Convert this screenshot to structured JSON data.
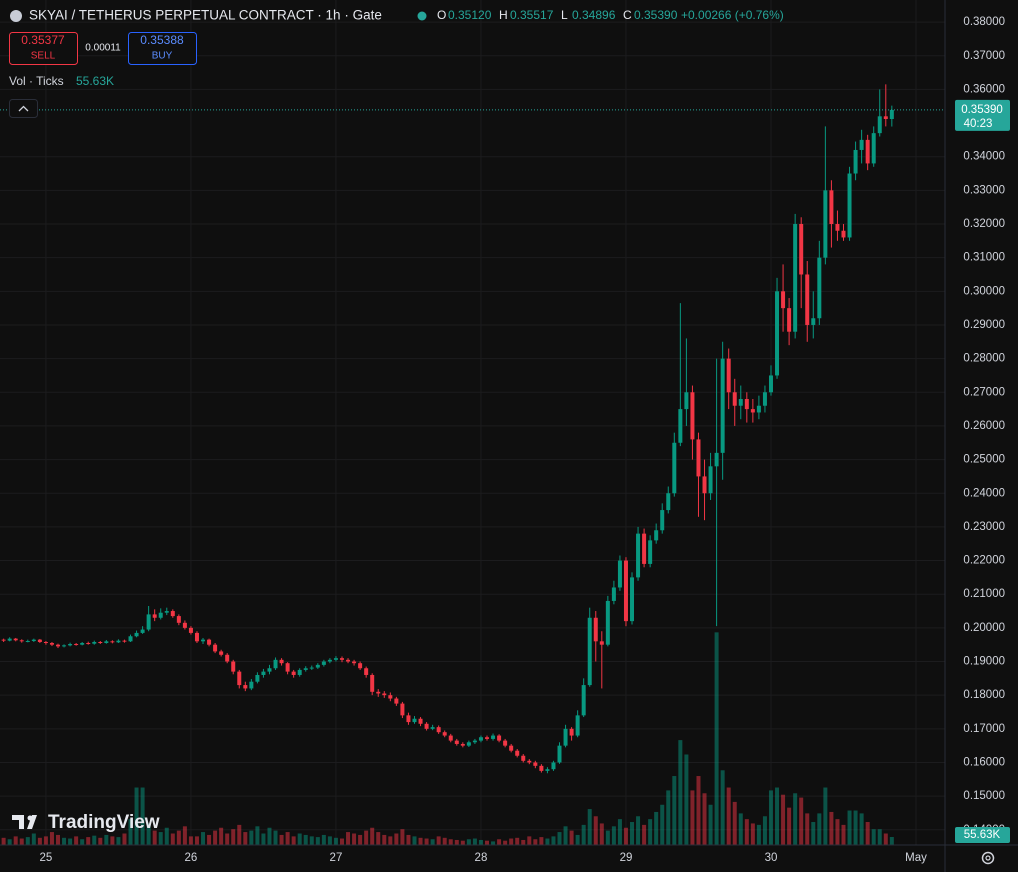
{
  "chart_data": {
    "type": "candlestick",
    "title": "SKYAI / TETHERUS PERPETUAL CONTRACT · 1h · Gate",
    "ohlc_header": [
      {
        "key": "O",
        "value": "0.35120"
      },
      {
        "key": "H",
        "value": "0.35517"
      },
      {
        "key": "L",
        "value": "0.34896"
      },
      {
        "key": "C",
        "value": "0.35390"
      }
    ],
    "change": "+0.00266 (+0.76%)",
    "sell": {
      "price": "0.35377",
      "label": "SELL"
    },
    "spread": "0.00011",
    "buy": {
      "price": "0.35388",
      "label": "BUY"
    },
    "brand": "TradingView",
    "up_color": "#089981",
    "down_color": "#f23645",
    "grid": true,
    "xlim": [
      0.4,
      156.8
    ],
    "xticks": [
      {
        "value": 8,
        "label": "25"
      },
      {
        "value": 32,
        "label": "26"
      },
      {
        "value": 56,
        "label": "27"
      },
      {
        "value": 80,
        "label": "28"
      },
      {
        "value": 104,
        "label": "29"
      },
      {
        "value": 128,
        "label": "30"
      },
      {
        "value": 152,
        "label": "May"
      }
    ],
    "ylim": [
      0.13548,
      0.38656
    ],
    "yticks": [
      {
        "value": 0.38,
        "label": "0.38000"
      },
      {
        "value": 0.37,
        "label": "0.37000"
      },
      {
        "value": 0.36,
        "label": "0.36000"
      },
      {
        "value": 0.34,
        "label": "0.34000"
      },
      {
        "value": 0.33,
        "label": "0.33000"
      },
      {
        "value": 0.32,
        "label": "0.32000"
      },
      {
        "value": 0.31,
        "label": "0.31000"
      },
      {
        "value": 0.3,
        "label": "0.30000"
      },
      {
        "value": 0.29,
        "label": "0.29000"
      },
      {
        "value": 0.28,
        "label": "0.28000"
      },
      {
        "value": 0.27,
        "label": "0.27000"
      },
      {
        "value": 0.26,
        "label": "0.26000"
      },
      {
        "value": 0.25,
        "label": "0.25000"
      },
      {
        "value": 0.24,
        "label": "0.24000"
      },
      {
        "value": 0.23,
        "label": "0.23000"
      },
      {
        "value": 0.22,
        "label": "0.22000"
      },
      {
        "value": 0.21,
        "label": "0.21000"
      },
      {
        "value": 0.2,
        "label": "0.20000"
      },
      {
        "value": 0.19,
        "label": "0.19000"
      },
      {
        "value": 0.18,
        "label": "0.18000"
      },
      {
        "value": 0.17,
        "label": "0.17000"
      },
      {
        "value": 0.16,
        "label": "0.16000"
      },
      {
        "value": 0.15,
        "label": "0.15000"
      },
      {
        "value": 0.14,
        "label": "0.14000"
      }
    ],
    "last_price": {
      "value": 0.3539,
      "label": "0.35390"
    },
    "countdown": "40:23",
    "open": [
      0.196,
      0.1965,
      0.1962,
      0.1968,
      0.1963,
      0.196,
      0.1961,
      0.1965,
      0.1958,
      0.1955,
      0.195,
      0.1945,
      0.1948,
      0.1952,
      0.195,
      0.1955,
      0.1953,
      0.1958,
      0.1955,
      0.196,
      0.1957,
      0.1962,
      0.196,
      0.1975,
      0.1985,
      0.1995,
      0.204,
      0.203,
      0.2045,
      0.205,
      0.2035,
      0.2015,
      0.2,
      0.1985,
      0.196,
      0.1965,
      0.195,
      0.193,
      0.192,
      0.19,
      0.187,
      0.183,
      0.182,
      0.184,
      0.186,
      0.187,
      0.188,
      0.1905,
      0.1895,
      0.187,
      0.186,
      0.1875,
      0.188,
      0.1882,
      0.189,
      0.19,
      0.1905,
      0.191,
      0.1905,
      0.19,
      0.1895,
      0.188,
      0.186,
      0.181,
      0.1805,
      0.18,
      0.179,
      0.1775,
      0.174,
      0.172,
      0.173,
      0.1715,
      0.17,
      0.1705,
      0.169,
      0.168,
      0.1665,
      0.1655,
      0.165,
      0.166,
      0.1665,
      0.1675,
      0.167,
      0.168,
      0.1665,
      0.165,
      0.1635,
      0.162,
      0.1605,
      0.16,
      0.159,
      0.1575,
      0.158,
      0.16,
      0.165,
      0.17,
      0.168,
      0.174,
      0.183,
      0.203,
      0.196,
      0.195,
      0.208,
      0.212,
      0.22,
      0.202,
      0.215,
      0.228,
      0.219,
      0.226,
      0.229,
      0.235,
      0.24,
      0.255,
      0.265,
      0.27,
      0.256,
      0.245,
      0.24,
      0.248,
      0.252,
      0.28,
      0.27,
      0.266,
      0.268,
      0.265,
      0.264,
      0.266,
      0.27,
      0.275,
      0.3,
      0.295,
      0.288,
      0.32,
      0.305,
      0.29,
      0.292,
      0.31,
      0.33,
      0.32,
      0.318,
      0.316,
      0.335,
      0.342,
      0.345,
      0.338,
      0.347,
      0.352,
      0.3512
    ],
    "high": [
      0.197,
      0.1968,
      0.1972,
      0.197,
      0.1966,
      0.1965,
      0.1968,
      0.1967,
      0.1961,
      0.1958,
      0.1953,
      0.1951,
      0.1956,
      0.1955,
      0.1958,
      0.1959,
      0.1962,
      0.1961,
      0.1964,
      0.1963,
      0.1966,
      0.1965,
      0.198,
      0.1992,
      0.2005,
      0.2065,
      0.2055,
      0.2058,
      0.206,
      0.2055,
      0.204,
      0.2022,
      0.2005,
      0.199,
      0.197,
      0.1968,
      0.1955,
      0.1935,
      0.1925,
      0.1905,
      0.1875,
      0.184,
      0.1848,
      0.1868,
      0.1878,
      0.189,
      0.1912,
      0.191,
      0.1898,
      0.1875,
      0.188,
      0.1886,
      0.1888,
      0.1895,
      0.1905,
      0.191,
      0.1916,
      0.1915,
      0.191,
      0.1905,
      0.19,
      0.1885,
      0.1865,
      0.1818,
      0.1812,
      0.1808,
      0.1795,
      0.178,
      0.1748,
      0.1738,
      0.1735,
      0.172,
      0.1712,
      0.171,
      0.1695,
      0.1685,
      0.167,
      0.166,
      0.1665,
      0.167,
      0.168,
      0.168,
      0.1686,
      0.1684,
      0.167,
      0.1655,
      0.164,
      0.1625,
      0.161,
      0.1605,
      0.1595,
      0.1586,
      0.1605,
      0.166,
      0.1712,
      0.1705,
      0.1755,
      0.185,
      0.206,
      0.205,
      0.199,
      0.2095,
      0.214,
      0.2215,
      0.221,
      0.2165,
      0.23,
      0.2295,
      0.2275,
      0.231,
      0.237,
      0.242,
      0.258,
      0.2965,
      0.286,
      0.272,
      0.258,
      0.25,
      0.252,
      0.28,
      0.285,
      0.283,
      0.274,
      0.272,
      0.27,
      0.268,
      0.269,
      0.272,
      0.278,
      0.304,
      0.308,
      0.298,
      0.323,
      0.322,
      0.309,
      0.3,
      0.315,
      0.349,
      0.333,
      0.324,
      0.32,
      0.337,
      0.3445,
      0.348,
      0.3465,
      0.349,
      0.36,
      0.3615,
      0.35517
    ],
    "low": [
      0.1955,
      0.1958,
      0.196,
      0.196,
      0.1956,
      0.1957,
      0.1958,
      0.1955,
      0.195,
      0.1946,
      0.194,
      0.1942,
      0.1945,
      0.1947,
      0.1948,
      0.195,
      0.195,
      0.1952,
      0.1953,
      0.1954,
      0.1955,
      0.1956,
      0.1958,
      0.1972,
      0.1982,
      0.199,
      0.202,
      0.2025,
      0.2038,
      0.203,
      0.2008,
      0.1995,
      0.198,
      0.1955,
      0.1952,
      0.1945,
      0.1925,
      0.1915,
      0.1895,
      0.1862,
      0.182,
      0.1812,
      0.1815,
      0.1835,
      0.1852,
      0.1862,
      0.1875,
      0.1888,
      0.1862,
      0.1852,
      0.1855,
      0.187,
      0.1875,
      0.1878,
      0.1885,
      0.1895,
      0.19,
      0.1898,
      0.1895,
      0.1888,
      0.1875,
      0.1852,
      0.18,
      0.1795,
      0.1792,
      0.1782,
      0.1768,
      0.1732,
      0.1712,
      0.1715,
      0.1708,
      0.1695,
      0.1696,
      0.1685,
      0.1675,
      0.166,
      0.165,
      0.1645,
      0.1646,
      0.1655,
      0.166,
      0.1665,
      0.1665,
      0.166,
      0.1645,
      0.163,
      0.1615,
      0.16,
      0.1595,
      0.1583,
      0.157,
      0.1568,
      0.1575,
      0.1596,
      0.1645,
      0.1665,
      0.1675,
      0.1735,
      0.1825,
      0.19,
      0.182,
      0.1945,
      0.207,
      0.211,
      0.2005,
      0.201,
      0.214,
      0.218,
      0.218,
      0.225,
      0.228,
      0.234,
      0.239,
      0.254,
      0.26,
      0.25,
      0.233,
      0.232,
      0.238,
      0.2005,
      0.244,
      0.265,
      0.26,
      0.262,
      0.261,
      0.261,
      0.262,
      0.264,
      0.269,
      0.274,
      0.288,
      0.284,
      0.286,
      0.295,
      0.285,
      0.286,
      0.29,
      0.308,
      0.313,
      0.315,
      0.315,
      0.315,
      0.333,
      0.338,
      0.336,
      0.337,
      0.346,
      0.349,
      0.34896
    ],
    "close": [
      0.1965,
      0.1962,
      0.1968,
      0.1963,
      0.196,
      0.1961,
      0.1965,
      0.1958,
      0.1955,
      0.195,
      0.1945,
      0.1948,
      0.1952,
      0.195,
      0.1955,
      0.1953,
      0.1958,
      0.1955,
      0.196,
      0.1957,
      0.1962,
      0.196,
      0.1975,
      0.1985,
      0.1995,
      0.204,
      0.203,
      0.2045,
      0.205,
      0.2035,
      0.2015,
      0.2,
      0.1985,
      0.196,
      0.1965,
      0.195,
      0.193,
      0.192,
      0.19,
      0.187,
      0.183,
      0.182,
      0.184,
      0.186,
      0.187,
      0.188,
      0.1905,
      0.1895,
      0.187,
      0.186,
      0.1875,
      0.188,
      0.1882,
      0.189,
      0.19,
      0.1905,
      0.191,
      0.1905,
      0.19,
      0.1895,
      0.188,
      0.186,
      0.181,
      0.1805,
      0.18,
      0.179,
      0.1775,
      0.174,
      0.172,
      0.173,
      0.1715,
      0.17,
      0.1705,
      0.169,
      0.168,
      0.1665,
      0.1655,
      0.165,
      0.166,
      0.1665,
      0.1675,
      0.167,
      0.168,
      0.1665,
      0.165,
      0.1635,
      0.162,
      0.1605,
      0.16,
      0.159,
      0.1575,
      0.158,
      0.16,
      0.165,
      0.17,
      0.168,
      0.174,
      0.183,
      0.203,
      0.196,
      0.195,
      0.208,
      0.212,
      0.22,
      0.202,
      0.215,
      0.228,
      0.219,
      0.226,
      0.229,
      0.235,
      0.24,
      0.255,
      0.265,
      0.27,
      0.256,
      0.245,
      0.24,
      0.248,
      0.252,
      0.28,
      0.27,
      0.266,
      0.268,
      0.265,
      0.264,
      0.266,
      0.27,
      0.275,
      0.3,
      0.295,
      0.288,
      0.32,
      0.305,
      0.29,
      0.292,
      0.31,
      0.33,
      0.32,
      0.318,
      0.316,
      0.335,
      0.342,
      0.345,
      0.338,
      0.347,
      0.352,
      0.3512,
      0.3539
    ],
    "volume": {
      "name": "Vol · Ticks",
      "last_label": "55.63K",
      "ylim": [
        0,
        1900000
      ],
      "values": [
        70000,
        50000,
        40000,
        60000,
        45000,
        55000,
        80000,
        50000,
        60000,
        90000,
        70000,
        50000,
        45000,
        60000,
        40000,
        55000,
        65000,
        50000,
        70000,
        60000,
        55000,
        80000,
        180000,
        400000,
        400000,
        150000,
        100000,
        90000,
        120000,
        80000,
        100000,
        130000,
        60000,
        60000,
        90000,
        70000,
        100000,
        120000,
        80000,
        110000,
        140000,
        90000,
        100000,
        130000,
        80000,
        120000,
        100000,
        70000,
        90000,
        60000,
        80000,
        70000,
        60000,
        55000,
        70000,
        60000,
        50000,
        45000,
        90000,
        80000,
        70000,
        100000,
        120000,
        90000,
        70000,
        60000,
        80000,
        110000,
        70000,
        60000,
        50000,
        45000,
        40000,
        60000,
        50000,
        40000,
        35000,
        30000,
        40000,
        45000,
        35000,
        30000,
        25000,
        40000,
        30000,
        45000,
        50000,
        35000,
        60000,
        40000,
        55000,
        45000,
        60000,
        90000,
        130000,
        100000,
        70000,
        140000,
        250000,
        200000,
        150000,
        100000,
        130000,
        180000,
        120000,
        160000,
        200000,
        140000,
        180000,
        230000,
        280000,
        380000,
        480000,
        730000,
        630000,
        380000,
        480000,
        360000,
        280000,
        1480000,
        520000,
        400000,
        300000,
        220000,
        180000,
        150000,
        140000,
        200000,
        380000,
        400000,
        350000,
        260000,
        360000,
        330000,
        220000,
        160000,
        220000,
        400000,
        230000,
        180000,
        140000,
        240000,
        240000,
        220000,
        160000,
        110000,
        110000,
        80000,
        55630
      ]
    }
  }
}
